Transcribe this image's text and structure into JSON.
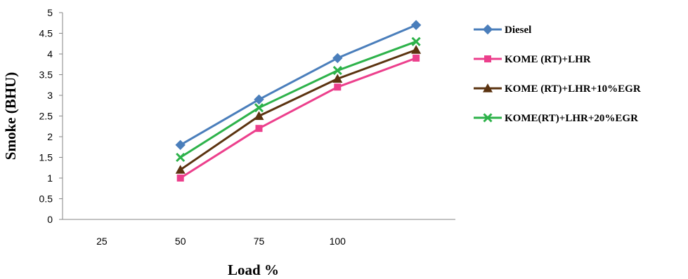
{
  "chart_data": {
    "type": "line",
    "categories": [
      "25",
      "50",
      "75",
      "100",
      ""
    ],
    "ylabel": "Smoke (BHU)",
    "xlabel": "Load %",
    "ylim": [
      0,
      5
    ],
    "yticks": [
      "0",
      "0.5",
      "1",
      "1.5",
      "2",
      "2.5",
      "3",
      "3.5",
      "4",
      "4.5",
      "5"
    ],
    "grid": false,
    "legend_position": "right",
    "series": [
      {
        "name": "Diesel",
        "color": "#4A7EBB",
        "marker": "diamond",
        "values": [
          null,
          1.8,
          2.9,
          3.9,
          4.7
        ]
      },
      {
        "name": "KOME (RT)+LHR",
        "color": "#EC3F8C",
        "marker": "square",
        "values": [
          null,
          1.0,
          2.2,
          3.2,
          3.9
        ]
      },
      {
        "name": "KOME (RT)+LHR+10%EGR",
        "color": "#5B3310",
        "marker": "triangle",
        "values": [
          null,
          1.2,
          2.5,
          3.4,
          4.1
        ]
      },
      {
        "name": "KOME(RT)+LHR+20%EGR",
        "color": "#2DB24A",
        "marker": "x",
        "values": [
          null,
          1.5,
          2.7,
          3.6,
          4.3
        ]
      }
    ]
  }
}
